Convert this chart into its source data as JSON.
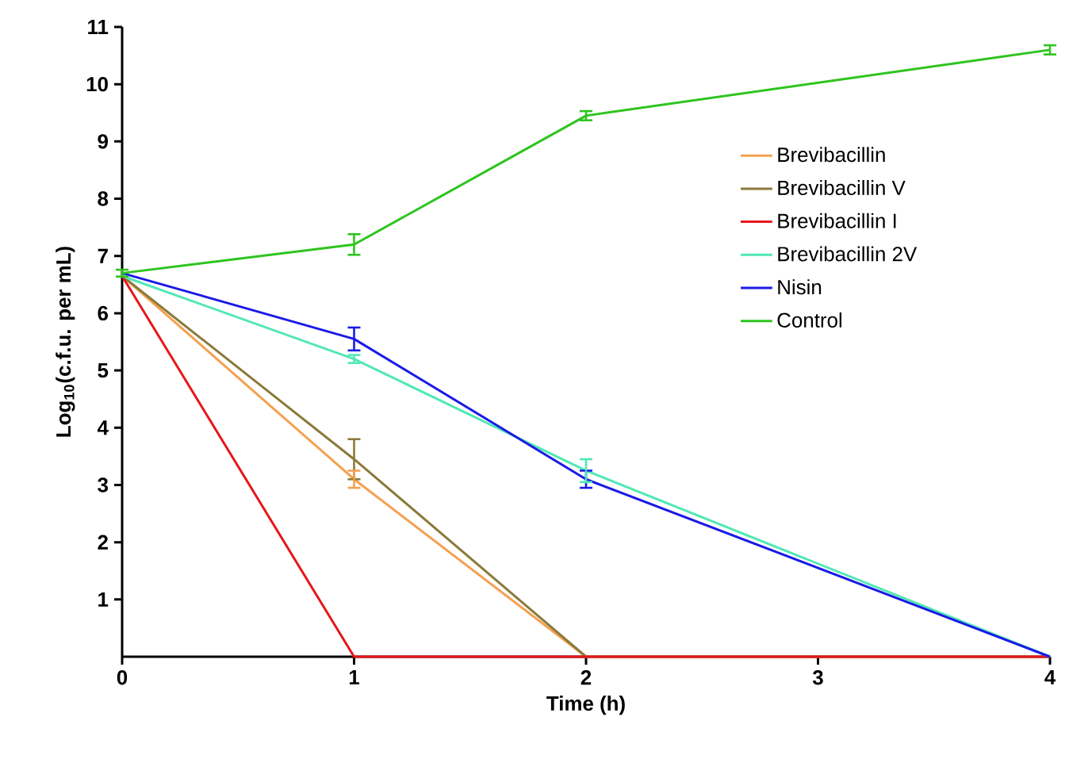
{
  "chart_data": {
    "type": "line",
    "xlabel": "Time (h)",
    "ylabel": "Log$_{10}$(c.f.u. per mL)",
    "x": [
      0,
      1,
      2,
      4
    ],
    "series": [
      {
        "name": "Brevibacillin",
        "color": "#f5a050",
        "values": [
          6.65,
          3.1,
          0,
          0
        ],
        "errors": [
          null,
          0.15,
          null,
          null
        ]
      },
      {
        "name": "Brevibacillin V",
        "color": "#8b7a3a",
        "values": [
          6.65,
          3.45,
          0,
          0
        ],
        "errors": [
          null,
          0.35,
          null,
          null
        ]
      },
      {
        "name": "Brevibacillin I",
        "color": "#e8151b",
        "values": [
          6.65,
          0,
          0,
          0
        ]
      },
      {
        "name": "Brevibacillin 2V",
        "color": "#50e8b4",
        "values": [
          6.65,
          5.2,
          3.25,
          0
        ],
        "errors": [
          null,
          0.07,
          0.2,
          null
        ]
      },
      {
        "name": "Nisin",
        "color": "#1a1ae6",
        "values": [
          6.7,
          5.55,
          3.1,
          0
        ],
        "errors": [
          null,
          0.2,
          0.15,
          null
        ]
      },
      {
        "name": "Control",
        "color": "#2ec41e",
        "values": [
          6.7,
          7.2,
          9.45,
          10.6
        ],
        "errors": [
          0.06,
          0.18,
          0.08,
          0.08
        ]
      }
    ],
    "xlim": [
      0,
      4
    ],
    "xticks": [
      0,
      1,
      2,
      3,
      4
    ],
    "ylim": [
      0,
      11
    ],
    "yticks": [
      1,
      2,
      3,
      4,
      5,
      6,
      7,
      8,
      9,
      10,
      11
    ],
    "grid": false,
    "legend": "right",
    "marker": "none",
    "line_style": "solid"
  }
}
